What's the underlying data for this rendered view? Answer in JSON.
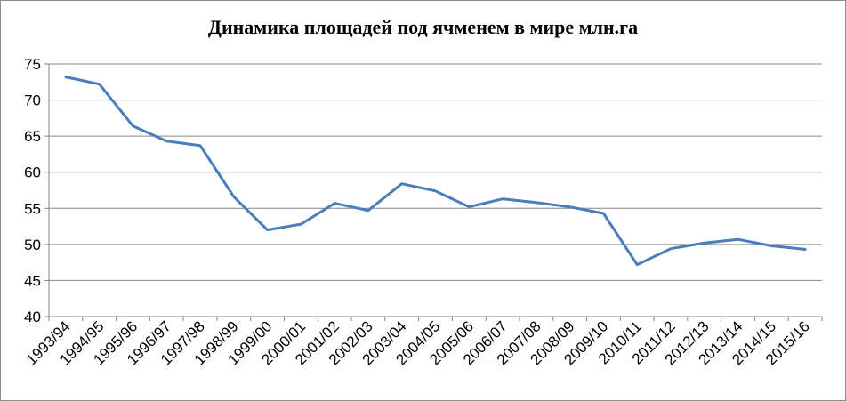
{
  "chart_data": {
    "type": "line",
    "title": "Динамика площадей под ячменем в мире млн.га",
    "xlabel": "",
    "ylabel": "",
    "ylim": [
      40,
      75
    ],
    "yticks": [
      "40",
      "45",
      "50",
      "55",
      "60",
      "65",
      "70",
      "75"
    ],
    "grid": "horizontal",
    "legend": "none",
    "categories": [
      "1993/94",
      "1994/95",
      "1995/96",
      "1996/97",
      "1997/98",
      "1998/99",
      "1999/00",
      "2000/01",
      "2001/02",
      "2002/03",
      "2003/04",
      "2004/05",
      "2005/06",
      "2006/07",
      "2007/08",
      "2008/09",
      "2009/10",
      "2010/11",
      "2011/12",
      "2012/13",
      "2013/14",
      "2014/15",
      "2015/16"
    ],
    "series": [
      {
        "values": [
          73.2,
          72.2,
          66.4,
          64.3,
          63.7,
          56.6,
          52.0,
          52.8,
          55.7,
          54.7,
          58.4,
          57.4,
          55.2,
          56.3,
          55.8,
          55.2,
          54.3,
          47.2,
          49.4,
          50.2,
          50.7,
          49.8,
          49.3
        ]
      }
    ],
    "colors": {
      "line": "#4a7ebb",
      "grid": "#868686",
      "axis": "#868686"
    }
  }
}
